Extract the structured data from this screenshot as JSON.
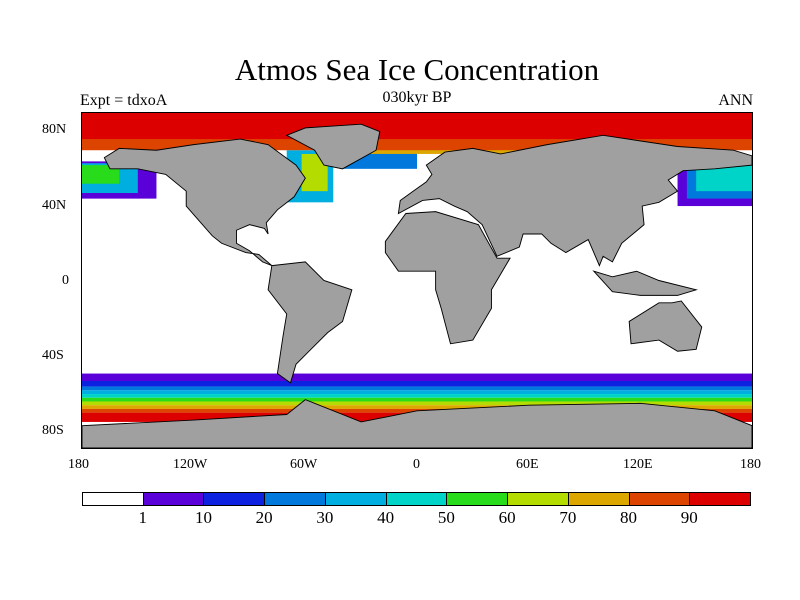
{
  "title": "Atmos Sea Ice Concentration",
  "subtitle": "030kyr BP",
  "left_label": "Expt = tdxoA",
  "right_label": "ANN",
  "lat_ticks": [
    "80N",
    "40N",
    "0",
    "40S",
    "80S"
  ],
  "lon_ticks": [
    "180",
    "120W",
    "60W",
    "0",
    "60E",
    "120E",
    "180"
  ],
  "colors": {
    "land": "#a0a0a0",
    "ocean": "#ffffff"
  },
  "colorbar": {
    "colors": [
      "#ffffff",
      "#5a00d8",
      "#0c22e0",
      "#0078dc",
      "#00aee0",
      "#00d4c8",
      "#28dc1c",
      "#b4dc00",
      "#dca800",
      "#dc4400",
      "#dc0000"
    ],
    "labels": [
      "1",
      "10",
      "20",
      "30",
      "40",
      "50",
      "60",
      "70",
      "80",
      "90"
    ]
  }
}
